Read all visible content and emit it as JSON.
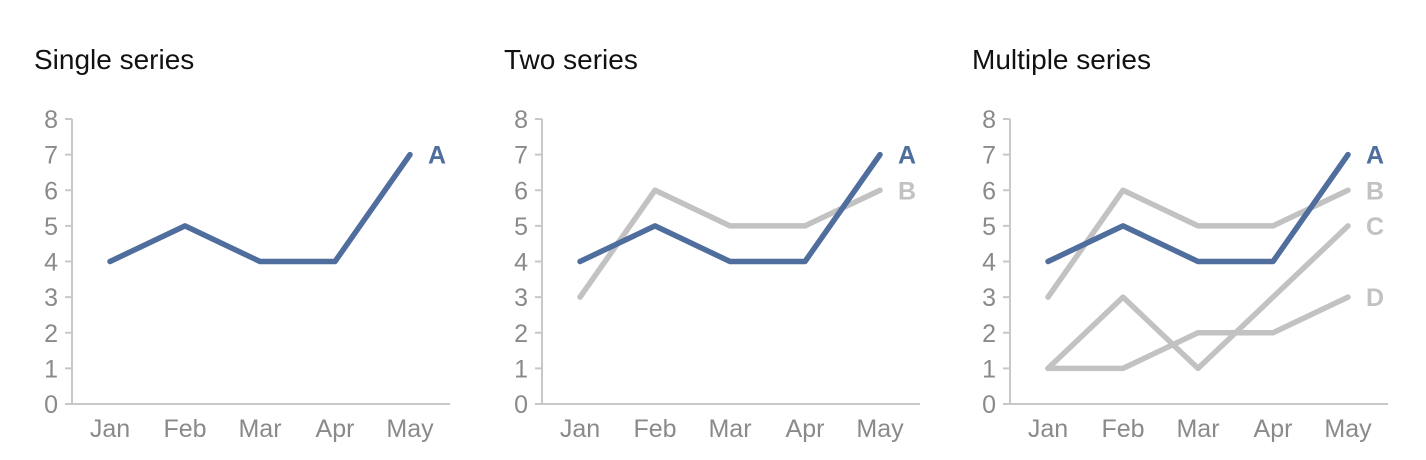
{
  "chart_data": [
    {
      "type": "line",
      "title": "Single series",
      "xlabel": "",
      "ylabel": "",
      "categories": [
        "Jan",
        "Feb",
        "Mar",
        "Apr",
        "May"
      ],
      "yticks": [
        "0",
        "1",
        "2",
        "3",
        "4",
        "5",
        "6",
        "7",
        "8"
      ],
      "ylim": [
        0,
        8
      ],
      "grid": false,
      "legend": "end-of-line labels",
      "series": [
        {
          "name": "A",
          "values": [
            4,
            5,
            4,
            4,
            7
          ],
          "color": "#4f6d9d"
        }
      ]
    },
    {
      "type": "line",
      "title": "Two series",
      "xlabel": "",
      "ylabel": "",
      "categories": [
        "Jan",
        "Feb",
        "Mar",
        "Apr",
        "May"
      ],
      "yticks": [
        "0",
        "1",
        "2",
        "3",
        "4",
        "5",
        "6",
        "7",
        "8"
      ],
      "ylim": [
        0,
        8
      ],
      "grid": false,
      "legend": "end-of-line labels",
      "series": [
        {
          "name": "B",
          "values": [
            3,
            6,
            5,
            5,
            6
          ],
          "color": "#c2c2c2"
        },
        {
          "name": "A",
          "values": [
            4,
            5,
            4,
            4,
            7
          ],
          "color": "#4f6d9d"
        }
      ]
    },
    {
      "type": "line",
      "title": "Multiple series",
      "xlabel": "",
      "ylabel": "",
      "categories": [
        "Jan",
        "Feb",
        "Mar",
        "Apr",
        "May"
      ],
      "yticks": [
        "0",
        "1",
        "2",
        "3",
        "4",
        "5",
        "6",
        "7",
        "8"
      ],
      "ylim": [
        0,
        8
      ],
      "grid": false,
      "legend": "end-of-line labels",
      "series": [
        {
          "name": "B",
          "values": [
            3,
            6,
            5,
            5,
            6
          ],
          "color": "#c2c2c2"
        },
        {
          "name": "C",
          "values": [
            1,
            3,
            1,
            3,
            5
          ],
          "color": "#c2c2c2"
        },
        {
          "name": "D",
          "values": [
            1,
            1,
            2,
            2,
            3
          ],
          "color": "#c2c2c2"
        },
        {
          "name": "A",
          "values": [
            4,
            5,
            4,
            4,
            7
          ],
          "color": "#4f6d9d"
        }
      ]
    }
  ]
}
